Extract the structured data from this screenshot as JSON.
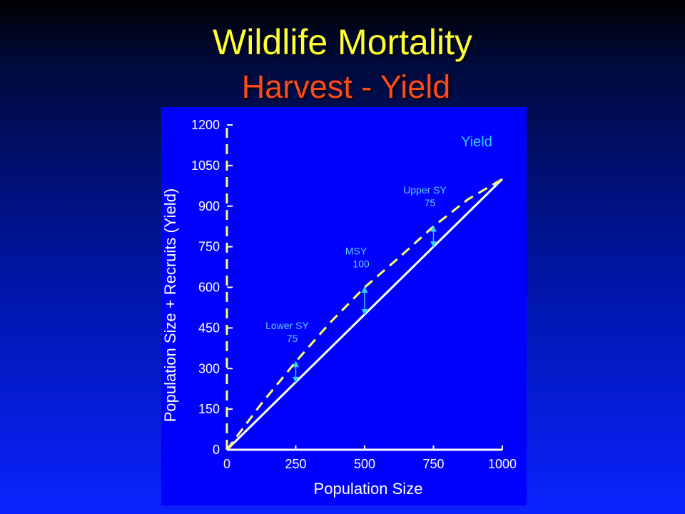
{
  "slide": {
    "title": "Wildlife Mortality",
    "subtitle": "Harvest - Yield"
  },
  "chart_data": {
    "type": "line",
    "xlabel": "Population Size",
    "ylabel": "Population Size + Recruits (Yield)",
    "xlim": [
      0,
      1000
    ],
    "ylim": [
      0,
      1200
    ],
    "x_ticks": [
      0,
      250,
      500,
      750,
      1000
    ],
    "y_ticks": [
      0,
      150,
      300,
      450,
      600,
      750,
      900,
      1050,
      1200
    ],
    "legend": {
      "label": "Yield",
      "placement": "top-right"
    },
    "grid": false,
    "series": [
      {
        "style": "solid",
        "color": "#ffffff",
        "x": [
          0,
          1000
        ],
        "y": [
          0,
          1000
        ]
      },
      {
        "style": "dashed",
        "color": "#ffff66",
        "x": [
          0,
          125,
          250,
          375,
          500,
          625,
          750,
          875,
          1000
        ],
        "y": [
          0,
          170,
          325,
          470,
          600,
          710,
          825,
          925,
          1000
        ]
      }
    ],
    "annotations": [
      {
        "label": "Lower SY",
        "value": "75",
        "x": 250,
        "y_low": 250,
        "y_high": 325
      },
      {
        "label": "MSY",
        "value": "100",
        "x": 500,
        "y_low": 500,
        "y_high": 600
      },
      {
        "label": "Upper SY",
        "value": "75",
        "x": 750,
        "y_low": 750,
        "y_high": 825
      }
    ],
    "colors": {
      "annotation": "#33ccff",
      "axis": "#ffffff",
      "axis_dashed": "#ffff66"
    }
  }
}
